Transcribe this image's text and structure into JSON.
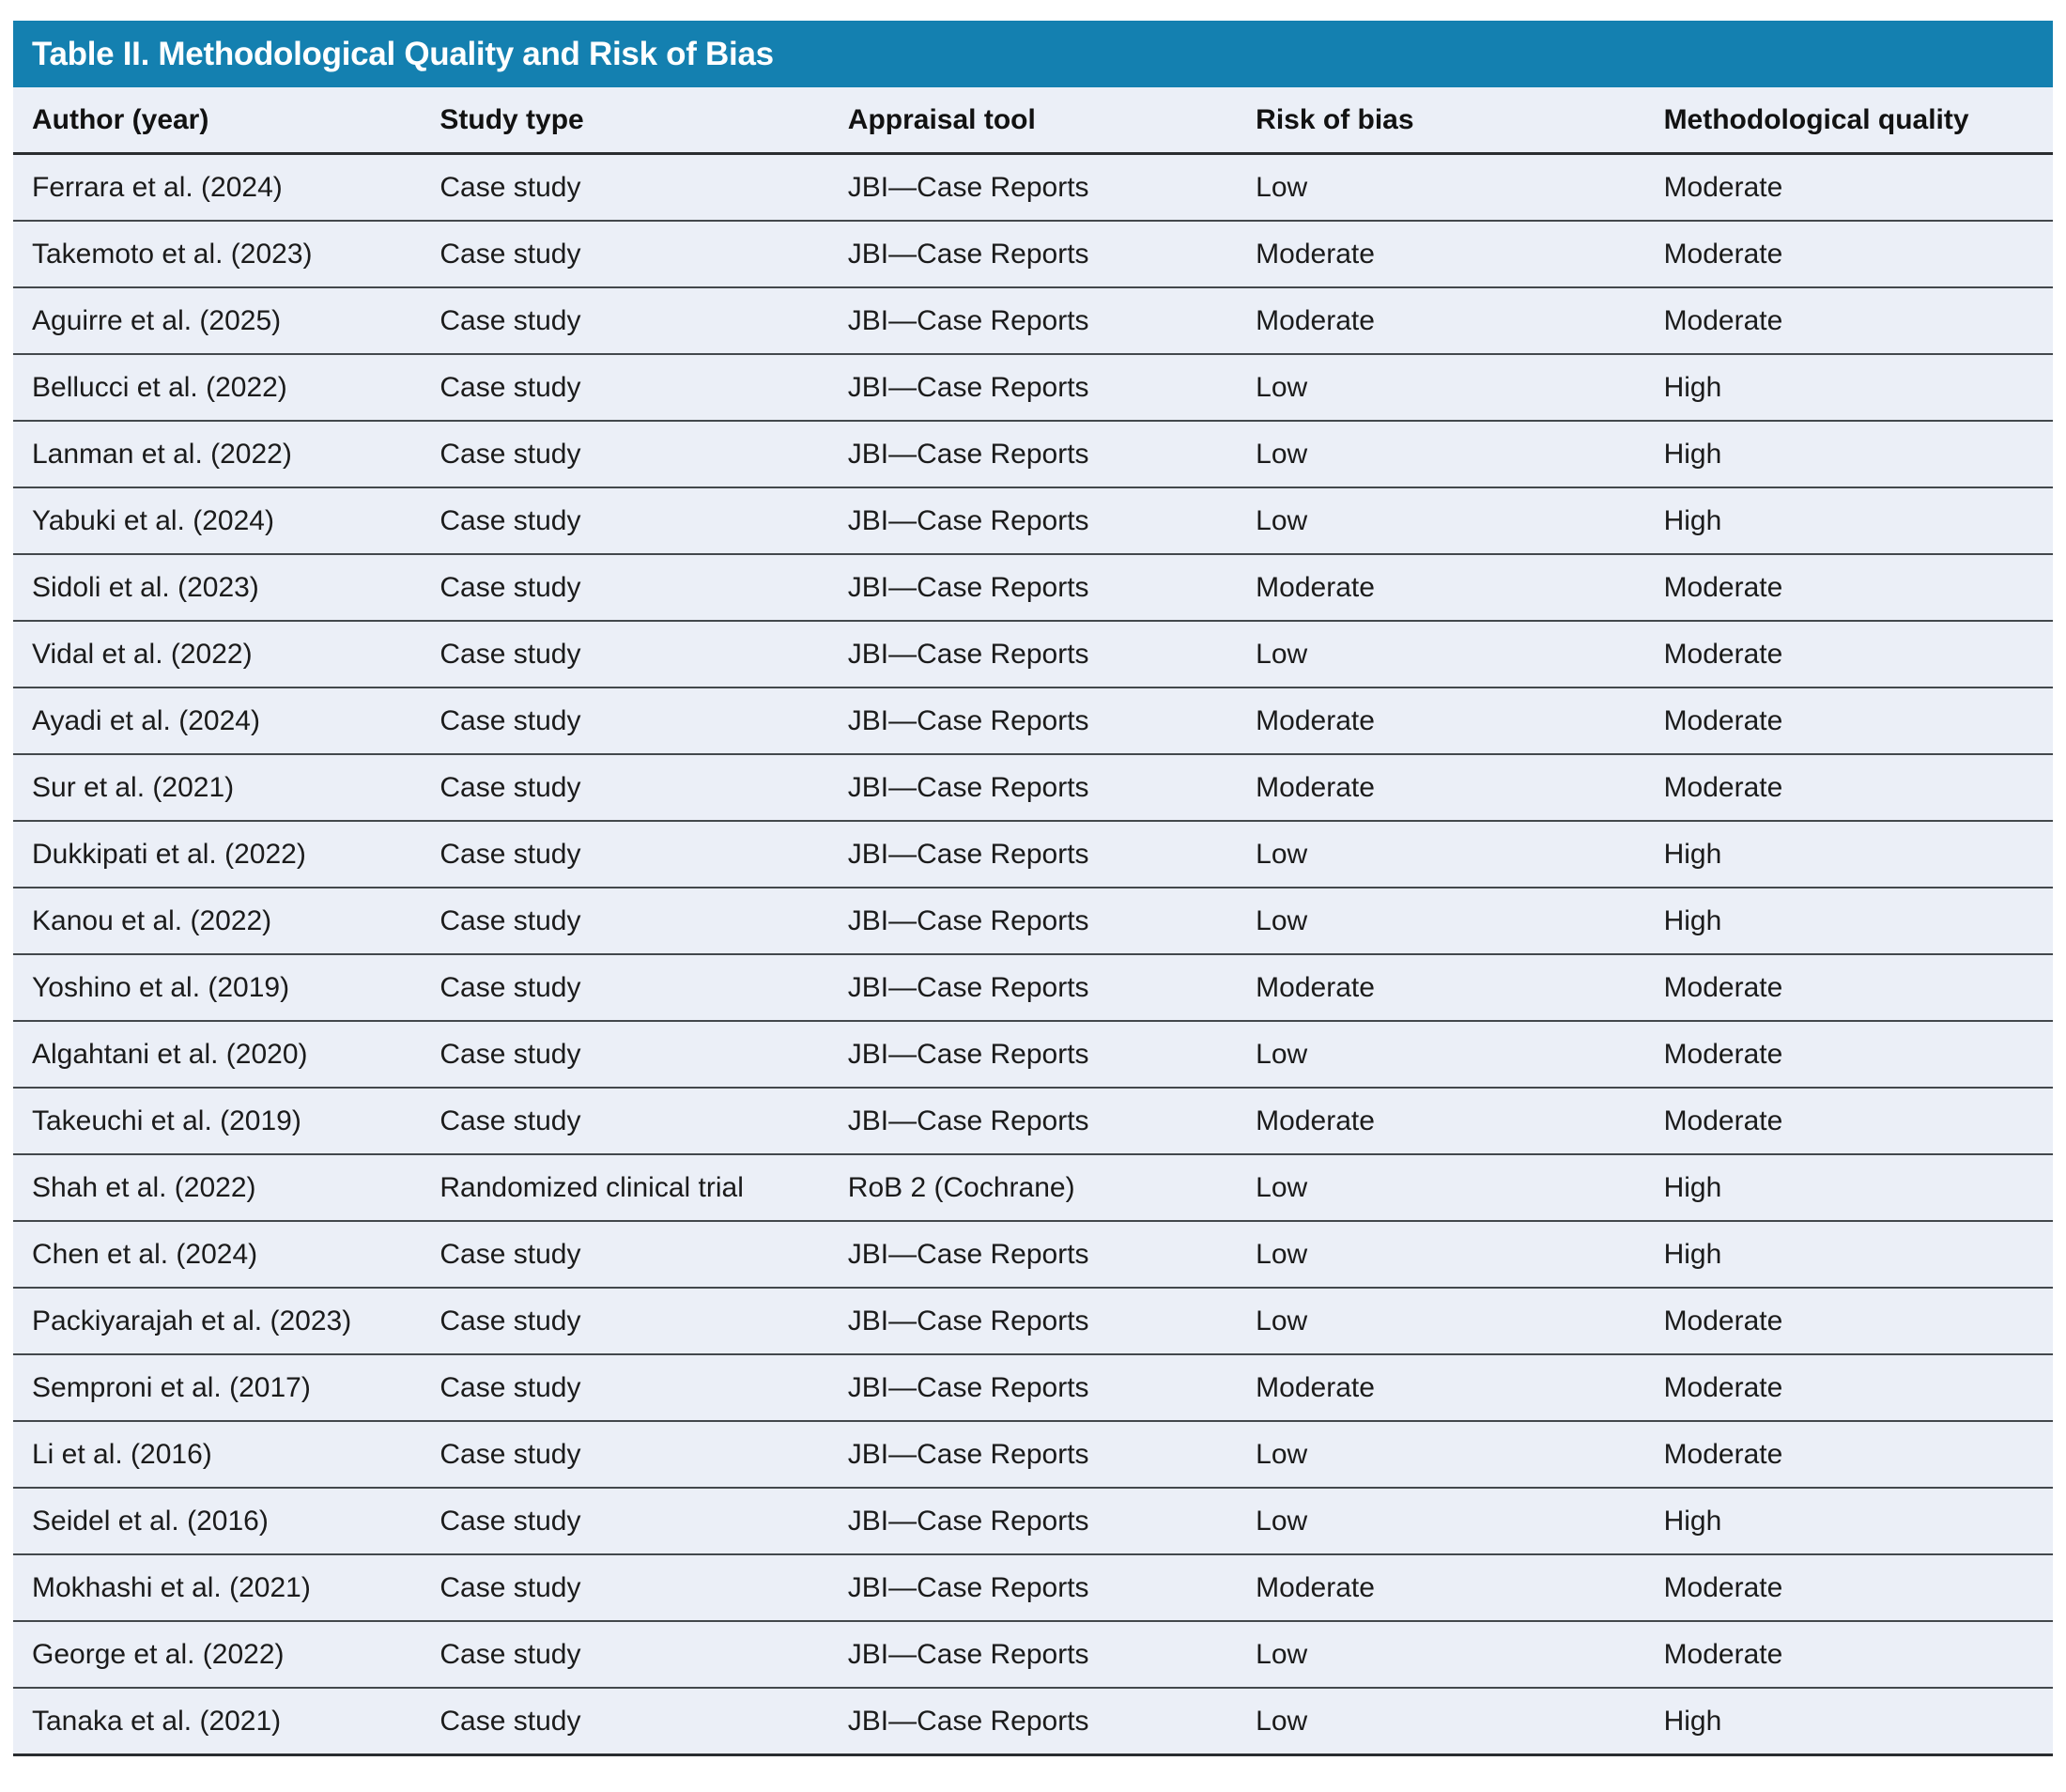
{
  "table": {
    "title": "Table II. Methodological Quality and Risk of Bias",
    "columns": [
      "Author (year)",
      "Study type",
      "Appraisal tool",
      "Risk of bias",
      "Methodological quality"
    ],
    "rows": [
      {
        "author": "Ferrara et al. (2024)",
        "study_type": "Case study",
        "appraisal_tool": "JBI—Case Reports",
        "risk_of_bias": "Low",
        "methodological_quality": "Moderate"
      },
      {
        "author": "Takemoto et al. (2023)",
        "study_type": "Case study",
        "appraisal_tool": "JBI—Case Reports",
        "risk_of_bias": "Moderate",
        "methodological_quality": "Moderate"
      },
      {
        "author": "Aguirre et al. (2025)",
        "study_type": "Case study",
        "appraisal_tool": "JBI—Case Reports",
        "risk_of_bias": "Moderate",
        "methodological_quality": "Moderate"
      },
      {
        "author": "Bellucci et al. (2022)",
        "study_type": "Case study",
        "appraisal_tool": "JBI—Case Reports",
        "risk_of_bias": "Low",
        "methodological_quality": "High"
      },
      {
        "author": "Lanman et al. (2022)",
        "study_type": "Case study",
        "appraisal_tool": "JBI—Case Reports",
        "risk_of_bias": "Low",
        "methodological_quality": "High"
      },
      {
        "author": "Yabuki et al. (2024)",
        "study_type": "Case study",
        "appraisal_tool": "JBI—Case Reports",
        "risk_of_bias": "Low",
        "methodological_quality": "High"
      },
      {
        "author": "Sidoli et al. (2023)",
        "study_type": "Case study",
        "appraisal_tool": "JBI—Case Reports",
        "risk_of_bias": "Moderate",
        "methodological_quality": "Moderate"
      },
      {
        "author": "Vidal et al. (2022)",
        "study_type": "Case study",
        "appraisal_tool": "JBI—Case Reports",
        "risk_of_bias": "Low",
        "methodological_quality": "Moderate"
      },
      {
        "author": "Ayadi et al. (2024)",
        "study_type": "Case study",
        "appraisal_tool": "JBI—Case Reports",
        "risk_of_bias": "Moderate",
        "methodological_quality": "Moderate"
      },
      {
        "author": "Sur et al. (2021)",
        "study_type": "Case study",
        "appraisal_tool": "JBI—Case Reports",
        "risk_of_bias": "Moderate",
        "methodological_quality": "Moderate"
      },
      {
        "author": "Dukkipati et al. (2022)",
        "study_type": "Case study",
        "appraisal_tool": "JBI—Case Reports",
        "risk_of_bias": "Low",
        "methodological_quality": "High"
      },
      {
        "author": "Kanou et al. (2022)",
        "study_type": "Case study",
        "appraisal_tool": "JBI—Case Reports",
        "risk_of_bias": "Low",
        "methodological_quality": "High"
      },
      {
        "author": "Yoshino et al. (2019)",
        "study_type": "Case study",
        "appraisal_tool": "JBI—Case Reports",
        "risk_of_bias": "Moderate",
        "methodological_quality": "Moderate"
      },
      {
        "author": "Algahtani et al. (2020)",
        "study_type": "Case study",
        "appraisal_tool": "JBI—Case Reports",
        "risk_of_bias": "Low",
        "methodological_quality": "Moderate"
      },
      {
        "author": "Takeuchi et al. (2019)",
        "study_type": "Case study",
        "appraisal_tool": "JBI—Case Reports",
        "risk_of_bias": "Moderate",
        "methodological_quality": "Moderate"
      },
      {
        "author": "Shah et al. (2022)",
        "study_type": "Randomized clinical trial",
        "appraisal_tool": "RoB 2 (Cochrane)",
        "risk_of_bias": "Low",
        "methodological_quality": "High"
      },
      {
        "author": "Chen et al. (2024)",
        "study_type": "Case study",
        "appraisal_tool": "JBI—Case Reports",
        "risk_of_bias": "Low",
        "methodological_quality": "High"
      },
      {
        "author": "Packiyarajah et al. (2023)",
        "study_type": "Case study",
        "appraisal_tool": "JBI—Case Reports",
        "risk_of_bias": "Low",
        "methodological_quality": "Moderate"
      },
      {
        "author": "Semproni et al. (2017)",
        "study_type": "Case study",
        "appraisal_tool": "JBI—Case Reports",
        "risk_of_bias": "Moderate",
        "methodological_quality": "Moderate"
      },
      {
        "author": "Li et al. (2016)",
        "study_type": "Case study",
        "appraisal_tool": "JBI—Case Reports",
        "risk_of_bias": "Low",
        "methodological_quality": "Moderate"
      },
      {
        "author": "Seidel et al. (2016)",
        "study_type": "Case study",
        "appraisal_tool": "JBI—Case Reports",
        "risk_of_bias": "Low",
        "methodological_quality": "High"
      },
      {
        "author": "Mokhashi et al. (2021)",
        "study_type": "Case study",
        "appraisal_tool": "JBI—Case Reports",
        "risk_of_bias": "Moderate",
        "methodological_quality": "Moderate"
      },
      {
        "author": "George et al. (2022)",
        "study_type": "Case study",
        "appraisal_tool": "JBI—Case Reports",
        "risk_of_bias": "Low",
        "methodological_quality": "Moderate"
      },
      {
        "author": "Tanaka et al. (2021)",
        "study_type": "Case study",
        "appraisal_tool": "JBI—Case Reports",
        "risk_of_bias": "Low",
        "methodological_quality": "High"
      }
    ]
  },
  "colors": {
    "title_bar_background": "#1480B0",
    "title_text": "#FFFFFF",
    "row_background": "#EBEFF7",
    "body_text": "#1B1B1B",
    "row_separator": "#43484C",
    "strong_border": "#2A2D30"
  }
}
